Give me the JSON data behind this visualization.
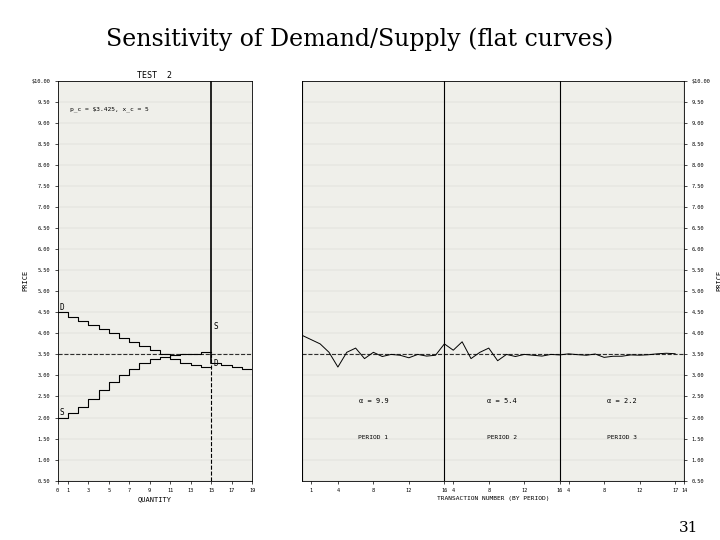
{
  "title": "Sensitivity of Demand/Supply (flat curves)",
  "subtitle": "TEST  2",
  "page_number": "31",
  "annotation": "p_c = $3.425, x_c = 5",
  "alpha_labels": [
    "α = 9.9",
    "α = 5.4",
    "α = 2.2"
  ],
  "period_labels": [
    "PERIOD 1",
    "PERIOD 2",
    "PERIOD 3"
  ],
  "left_ylabel": "PRICE",
  "right_ylabel": "PRICE",
  "left_xlabel": "QUANTITY",
  "right_xlabel": "TRANSACTION NUMBER (BY PERIOD)",
  "equilibrium_price": 3.5,
  "background_color": "#ffffff",
  "chart_bg": "#efefea"
}
